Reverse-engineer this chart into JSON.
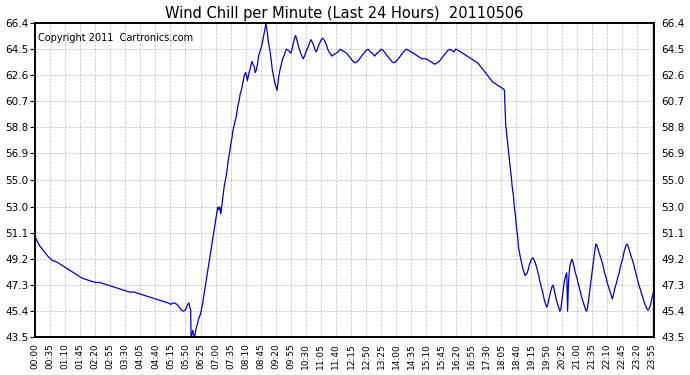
{
  "title": "Wind Chill per Minute (Last 24 Hours)  20110506",
  "copyright_text": "Copyright 2011  Cartronics.com",
  "line_color": "#0000CC",
  "bg_color": "#ffffff",
  "plot_bg_color": "#ffffff",
  "grid_color": "#aaaaaa",
  "ylim": [
    43.5,
    66.4
  ],
  "yticks": [
    43.5,
    45.4,
    47.3,
    49.2,
    51.1,
    53.0,
    55.0,
    56.9,
    58.8,
    60.7,
    62.6,
    64.5,
    66.4
  ],
  "xtick_labels": [
    "00:00",
    "00:35",
    "01:10",
    "01:45",
    "02:20",
    "02:55",
    "03:30",
    "04:05",
    "04:40",
    "05:15",
    "05:50",
    "06:25",
    "07:00",
    "07:35",
    "08:10",
    "08:45",
    "09:20",
    "09:55",
    "10:30",
    "11:05",
    "11:40",
    "12:15",
    "12:50",
    "13:25",
    "14:00",
    "14:35",
    "15:10",
    "15:45",
    "16:20",
    "16:55",
    "17:30",
    "18:05",
    "18:40",
    "19:15",
    "19:50",
    "20:25",
    "21:00",
    "21:35",
    "22:10",
    "22:45",
    "23:20",
    "23:55"
  ],
  "segment_points": [
    [
      0,
      50.8
    ],
    [
      5,
      50.5
    ],
    [
      10,
      50.2
    ],
    [
      15,
      50.0
    ],
    [
      20,
      49.8
    ],
    [
      25,
      49.6
    ],
    [
      30,
      49.4
    ],
    [
      40,
      49.1
    ],
    [
      50,
      49.0
    ],
    [
      60,
      48.8
    ],
    [
      70,
      48.6
    ],
    [
      80,
      48.4
    ],
    [
      90,
      48.2
    ],
    [
      100,
      48.0
    ],
    [
      110,
      47.8
    ],
    [
      120,
      47.7
    ],
    [
      130,
      47.6
    ],
    [
      140,
      47.5
    ],
    [
      150,
      47.5
    ],
    [
      160,
      47.4
    ],
    [
      170,
      47.3
    ],
    [
      180,
      47.2
    ],
    [
      190,
      47.1
    ],
    [
      200,
      47.0
    ],
    [
      210,
      46.9
    ],
    [
      220,
      46.8
    ],
    [
      230,
      46.8
    ],
    [
      240,
      46.7
    ],
    [
      250,
      46.6
    ],
    [
      260,
      46.5
    ],
    [
      270,
      46.4
    ],
    [
      280,
      46.3
    ],
    [
      290,
      46.2
    ],
    [
      300,
      46.1
    ],
    [
      310,
      46.0
    ],
    [
      316,
      45.9
    ],
    [
      320,
      46.0
    ],
    [
      325,
      46.0
    ],
    [
      330,
      45.9
    ],
    [
      335,
      45.7
    ],
    [
      340,
      45.5
    ],
    [
      345,
      45.4
    ],
    [
      350,
      45.5
    ],
    [
      355,
      45.9
    ],
    [
      358,
      46.0
    ],
    [
      360,
      45.7
    ],
    [
      362,
      45.5
    ],
    [
      363,
      43.5
    ],
    [
      365,
      43.7
    ],
    [
      367,
      44.0
    ],
    [
      368,
      43.8
    ],
    [
      370,
      43.6
    ],
    [
      371,
      43.5
    ],
    [
      373,
      43.8
    ],
    [
      375,
      44.2
    ],
    [
      378,
      44.5
    ],
    [
      380,
      44.8
    ],
    [
      385,
      45.2
    ],
    [
      390,
      46.0
    ],
    [
      395,
      47.0
    ],
    [
      400,
      48.0
    ],
    [
      405,
      49.0
    ],
    [
      410,
      50.0
    ],
    [
      415,
      51.0
    ],
    [
      420,
      52.0
    ],
    [
      425,
      53.0
    ],
    [
      427,
      52.8
    ],
    [
      430,
      53.0
    ],
    [
      432,
      52.5
    ],
    [
      435,
      53.2
    ],
    [
      438,
      54.0
    ],
    [
      440,
      54.5
    ],
    [
      443,
      55.0
    ],
    [
      445,
      55.3
    ],
    [
      448,
      56.0
    ],
    [
      450,
      56.5
    ],
    [
      453,
      57.0
    ],
    [
      455,
      57.5
    ],
    [
      458,
      58.0
    ],
    [
      460,
      58.5
    ],
    [
      462,
      58.8
    ],
    [
      465,
      59.2
    ],
    [
      468,
      59.6
    ],
    [
      470,
      60.0
    ],
    [
      472,
      60.4
    ],
    [
      475,
      60.8
    ],
    [
      477,
      61.2
    ],
    [
      480,
      61.5
    ],
    [
      483,
      62.0
    ],
    [
      485,
      62.3
    ],
    [
      487,
      62.6
    ],
    [
      490,
      62.8
    ],
    [
      492,
      62.6
    ],
    [
      494,
      62.2
    ],
    [
      496,
      62.5
    ],
    [
      498,
      62.8
    ],
    [
      500,
      63.0
    ],
    [
      502,
      63.3
    ],
    [
      505,
      63.6
    ],
    [
      507,
      63.4
    ],
    [
      510,
      63.2
    ],
    [
      512,
      62.8
    ],
    [
      515,
      63.0
    ],
    [
      518,
      63.5
    ],
    [
      520,
      64.0
    ],
    [
      523,
      64.3
    ],
    [
      526,
      64.6
    ],
    [
      529,
      65.0
    ],
    [
      532,
      65.5
    ],
    [
      535,
      66.0
    ],
    [
      537,
      66.4
    ],
    [
      540,
      65.8
    ],
    [
      543,
      65.0
    ],
    [
      546,
      64.5
    ],
    [
      549,
      63.8
    ],
    [
      552,
      63.0
    ],
    [
      555,
      62.5
    ],
    [
      558,
      62.0
    ],
    [
      560,
      61.8
    ],
    [
      563,
      61.5
    ],
    [
      565,
      62.0
    ],
    [
      567,
      62.5
    ],
    [
      570,
      63.0
    ],
    [
      573,
      63.4
    ],
    [
      576,
      63.8
    ],
    [
      579,
      64.0
    ],
    [
      582,
      64.3
    ],
    [
      585,
      64.5
    ],
    [
      590,
      64.4
    ],
    [
      595,
      64.2
    ],
    [
      598,
      64.5
    ],
    [
      600,
      64.8
    ],
    [
      603,
      65.2
    ],
    [
      606,
      65.5
    ],
    [
      609,
      65.2
    ],
    [
      612,
      64.8
    ],
    [
      615,
      64.5
    ],
    [
      618,
      64.2
    ],
    [
      621,
      64.0
    ],
    [
      624,
      63.8
    ],
    [
      627,
      64.0
    ],
    [
      630,
      64.3
    ],
    [
      633,
      64.5
    ],
    [
      636,
      64.7
    ],
    [
      639,
      65.0
    ],
    [
      642,
      65.2
    ],
    [
      645,
      65.0
    ],
    [
      648,
      64.8
    ],
    [
      651,
      64.5
    ],
    [
      654,
      64.3
    ],
    [
      657,
      64.5
    ],
    [
      660,
      64.8
    ],
    [
      663,
      65.0
    ],
    [
      666,
      65.2
    ],
    [
      669,
      65.3
    ],
    [
      672,
      65.2
    ],
    [
      675,
      65.0
    ],
    [
      678,
      64.8
    ],
    [
      681,
      64.5
    ],
    [
      684,
      64.3
    ],
    [
      687,
      64.2
    ],
    [
      690,
      64.0
    ],
    [
      695,
      64.1
    ],
    [
      700,
      64.2
    ],
    [
      705,
      64.3
    ],
    [
      710,
      64.5
    ],
    [
      715,
      64.4
    ],
    [
      720,
      64.3
    ],
    [
      725,
      64.2
    ],
    [
      730,
      64.0
    ],
    [
      735,
      63.8
    ],
    [
      740,
      63.6
    ],
    [
      745,
      63.5
    ],
    [
      750,
      63.6
    ],
    [
      755,
      63.8
    ],
    [
      760,
      64.0
    ],
    [
      765,
      64.2
    ],
    [
      770,
      64.4
    ],
    [
      775,
      64.5
    ],
    [
      780,
      64.3
    ],
    [
      785,
      64.2
    ],
    [
      790,
      64.0
    ],
    [
      795,
      64.2
    ],
    [
      800,
      64.3
    ],
    [
      805,
      64.5
    ],
    [
      810,
      64.4
    ],
    [
      815,
      64.2
    ],
    [
      820,
      64.0
    ],
    [
      825,
      63.8
    ],
    [
      830,
      63.6
    ],
    [
      835,
      63.5
    ],
    [
      840,
      63.6
    ],
    [
      845,
      63.8
    ],
    [
      850,
      64.0
    ],
    [
      855,
      64.2
    ],
    [
      860,
      64.4
    ],
    [
      865,
      64.5
    ],
    [
      870,
      64.4
    ],
    [
      875,
      64.3
    ],
    [
      880,
      64.2
    ],
    [
      885,
      64.1
    ],
    [
      890,
      64.0
    ],
    [
      895,
      63.9
    ],
    [
      900,
      63.8
    ],
    [
      905,
      63.8
    ],
    [
      910,
      63.8
    ],
    [
      915,
      63.7
    ],
    [
      920,
      63.6
    ],
    [
      925,
      63.5
    ],
    [
      930,
      63.4
    ],
    [
      935,
      63.5
    ],
    [
      940,
      63.6
    ],
    [
      945,
      63.8
    ],
    [
      950,
      64.0
    ],
    [
      955,
      64.2
    ],
    [
      960,
      64.4
    ],
    [
      965,
      64.5
    ],
    [
      970,
      64.4
    ],
    [
      975,
      64.3
    ],
    [
      978,
      64.5
    ],
    [
      980,
      64.5
    ],
    [
      985,
      64.4
    ],
    [
      990,
      64.3
    ],
    [
      995,
      64.2
    ],
    [
      1000,
      64.1
    ],
    [
      1005,
      64.0
    ],
    [
      1010,
      63.9
    ],
    [
      1015,
      63.8
    ],
    [
      1020,
      63.7
    ],
    [
      1025,
      63.6
    ],
    [
      1030,
      63.5
    ],
    [
      1035,
      63.3
    ],
    [
      1040,
      63.1
    ],
    [
      1045,
      62.9
    ],
    [
      1050,
      62.7
    ],
    [
      1055,
      62.5
    ],
    [
      1060,
      62.3
    ],
    [
      1065,
      62.1
    ],
    [
      1070,
      62.0
    ],
    [
      1075,
      61.9
    ],
    [
      1080,
      61.8
    ],
    [
      1085,
      61.7
    ],
    [
      1090,
      61.6
    ],
    [
      1092,
      61.5
    ],
    [
      1095,
      59.0
    ],
    [
      1100,
      57.5
    ],
    [
      1105,
      56.0
    ],
    [
      1108,
      55.2
    ],
    [
      1110,
      54.5
    ],
    [
      1113,
      53.8
    ],
    [
      1115,
      53.0
    ],
    [
      1118,
      52.3
    ],
    [
      1120,
      51.5
    ],
    [
      1123,
      50.8
    ],
    [
      1125,
      50.0
    ],
    [
      1128,
      49.5
    ],
    [
      1130,
      49.2
    ],
    [
      1133,
      48.8
    ],
    [
      1135,
      48.5
    ],
    [
      1138,
      48.2
    ],
    [
      1140,
      48.0
    ],
    [
      1145,
      48.2
    ],
    [
      1148,
      48.5
    ],
    [
      1150,
      48.8
    ],
    [
      1153,
      49.0
    ],
    [
      1155,
      49.2
    ],
    [
      1158,
      49.3
    ],
    [
      1160,
      49.2
    ],
    [
      1163,
      49.0
    ],
    [
      1165,
      48.8
    ],
    [
      1168,
      48.5
    ],
    [
      1170,
      48.2
    ],
    [
      1172,
      48.0
    ],
    [
      1173,
      47.8
    ],
    [
      1175,
      47.5
    ],
    [
      1177,
      47.3
    ],
    [
      1179,
      47.0
    ],
    [
      1181,
      46.8
    ],
    [
      1183,
      46.5
    ],
    [
      1185,
      46.2
    ],
    [
      1187,
      46.0
    ],
    [
      1189,
      45.8
    ],
    [
      1191,
      45.7
    ],
    [
      1193,
      45.9
    ],
    [
      1195,
      46.2
    ],
    [
      1197,
      46.5
    ],
    [
      1199,
      46.8
    ],
    [
      1201,
      47.0
    ],
    [
      1203,
      47.2
    ],
    [
      1205,
      47.3
    ],
    [
      1207,
      47.1
    ],
    [
      1209,
      46.8
    ],
    [
      1211,
      46.5
    ],
    [
      1213,
      46.2
    ],
    [
      1215,
      46.0
    ],
    [
      1217,
      45.8
    ],
    [
      1219,
      45.6
    ],
    [
      1221,
      45.4
    ],
    [
      1223,
      45.5
    ],
    [
      1225,
      46.0
    ],
    [
      1227,
      46.5
    ],
    [
      1229,
      47.0
    ],
    [
      1231,
      47.5
    ],
    [
      1233,
      47.8
    ],
    [
      1235,
      48.0
    ],
    [
      1237,
      48.2
    ],
    [
      1239,
      45.4
    ],
    [
      1241,
      47.5
    ],
    [
      1243,
      48.3
    ],
    [
      1245,
      48.8
    ],
    [
      1247,
      49.0
    ],
    [
      1249,
      49.2
    ],
    [
      1251,
      49.0
    ],
    [
      1253,
      48.8
    ],
    [
      1255,
      48.5
    ],
    [
      1257,
      48.2
    ],
    [
      1259,
      48.0
    ],
    [
      1261,
      47.8
    ],
    [
      1263,
      47.5
    ],
    [
      1265,
      47.3
    ],
    [
      1267,
      47.0
    ],
    [
      1269,
      46.8
    ],
    [
      1271,
      46.5
    ],
    [
      1273,
      46.3
    ],
    [
      1275,
      46.1
    ],
    [
      1277,
      45.9
    ],
    [
      1279,
      45.7
    ],
    [
      1281,
      45.5
    ],
    [
      1283,
      45.4
    ],
    [
      1285,
      45.6
    ],
    [
      1287,
      46.0
    ],
    [
      1289,
      46.5
    ],
    [
      1291,
      47.0
    ],
    [
      1293,
      47.5
    ],
    [
      1295,
      48.0
    ],
    [
      1297,
      48.5
    ],
    [
      1299,
      49.0
    ],
    [
      1301,
      49.5
    ],
    [
      1303,
      50.0
    ],
    [
      1305,
      50.3
    ],
    [
      1307,
      50.2
    ],
    [
      1309,
      50.0
    ],
    [
      1311,
      49.8
    ],
    [
      1313,
      49.6
    ],
    [
      1315,
      49.4
    ],
    [
      1317,
      49.2
    ],
    [
      1319,
      49.0
    ],
    [
      1321,
      48.8
    ],
    [
      1323,
      48.5
    ],
    [
      1325,
      48.2
    ],
    [
      1327,
      48.0
    ],
    [
      1329,
      47.8
    ],
    [
      1331,
      47.5
    ],
    [
      1333,
      47.3
    ],
    [
      1335,
      47.1
    ],
    [
      1337,
      46.9
    ],
    [
      1339,
      46.7
    ],
    [
      1341,
      46.5
    ],
    [
      1343,
      46.3
    ],
    [
      1345,
      46.5
    ],
    [
      1347,
      46.8
    ],
    [
      1349,
      47.1
    ],
    [
      1351,
      47.3
    ],
    [
      1353,
      47.5
    ],
    [
      1355,
      47.8
    ],
    [
      1357,
      48.0
    ],
    [
      1359,
      48.2
    ],
    [
      1361,
      48.5
    ],
    [
      1363,
      48.8
    ],
    [
      1365,
      49.0
    ],
    [
      1367,
      49.2
    ],
    [
      1369,
      49.5
    ],
    [
      1371,
      49.8
    ],
    [
      1373,
      50.0
    ],
    [
      1375,
      50.2
    ],
    [
      1377,
      50.3
    ],
    [
      1379,
      50.2
    ],
    [
      1381,
      50.0
    ],
    [
      1383,
      49.8
    ],
    [
      1385,
      49.6
    ],
    [
      1387,
      49.4
    ],
    [
      1389,
      49.2
    ],
    [
      1391,
      49.0
    ],
    [
      1393,
      48.8
    ],
    [
      1395,
      48.5
    ],
    [
      1397,
      48.3
    ],
    [
      1399,
      48.0
    ],
    [
      1401,
      47.8
    ],
    [
      1403,
      47.5
    ],
    [
      1405,
      47.3
    ],
    [
      1407,
      47.1
    ],
    [
      1409,
      46.9
    ],
    [
      1411,
      46.7
    ],
    [
      1413,
      46.5
    ],
    [
      1415,
      46.3
    ],
    [
      1417,
      46.1
    ],
    [
      1419,
      45.9
    ],
    [
      1421,
      45.8
    ],
    [
      1423,
      45.6
    ],
    [
      1425,
      45.5
    ],
    [
      1427,
      45.5
    ],
    [
      1429,
      45.6
    ],
    [
      1431,
      45.8
    ],
    [
      1433,
      46.0
    ],
    [
      1435,
      46.3
    ],
    [
      1437,
      46.6
    ],
    [
      1439,
      46.8
    ]
  ]
}
